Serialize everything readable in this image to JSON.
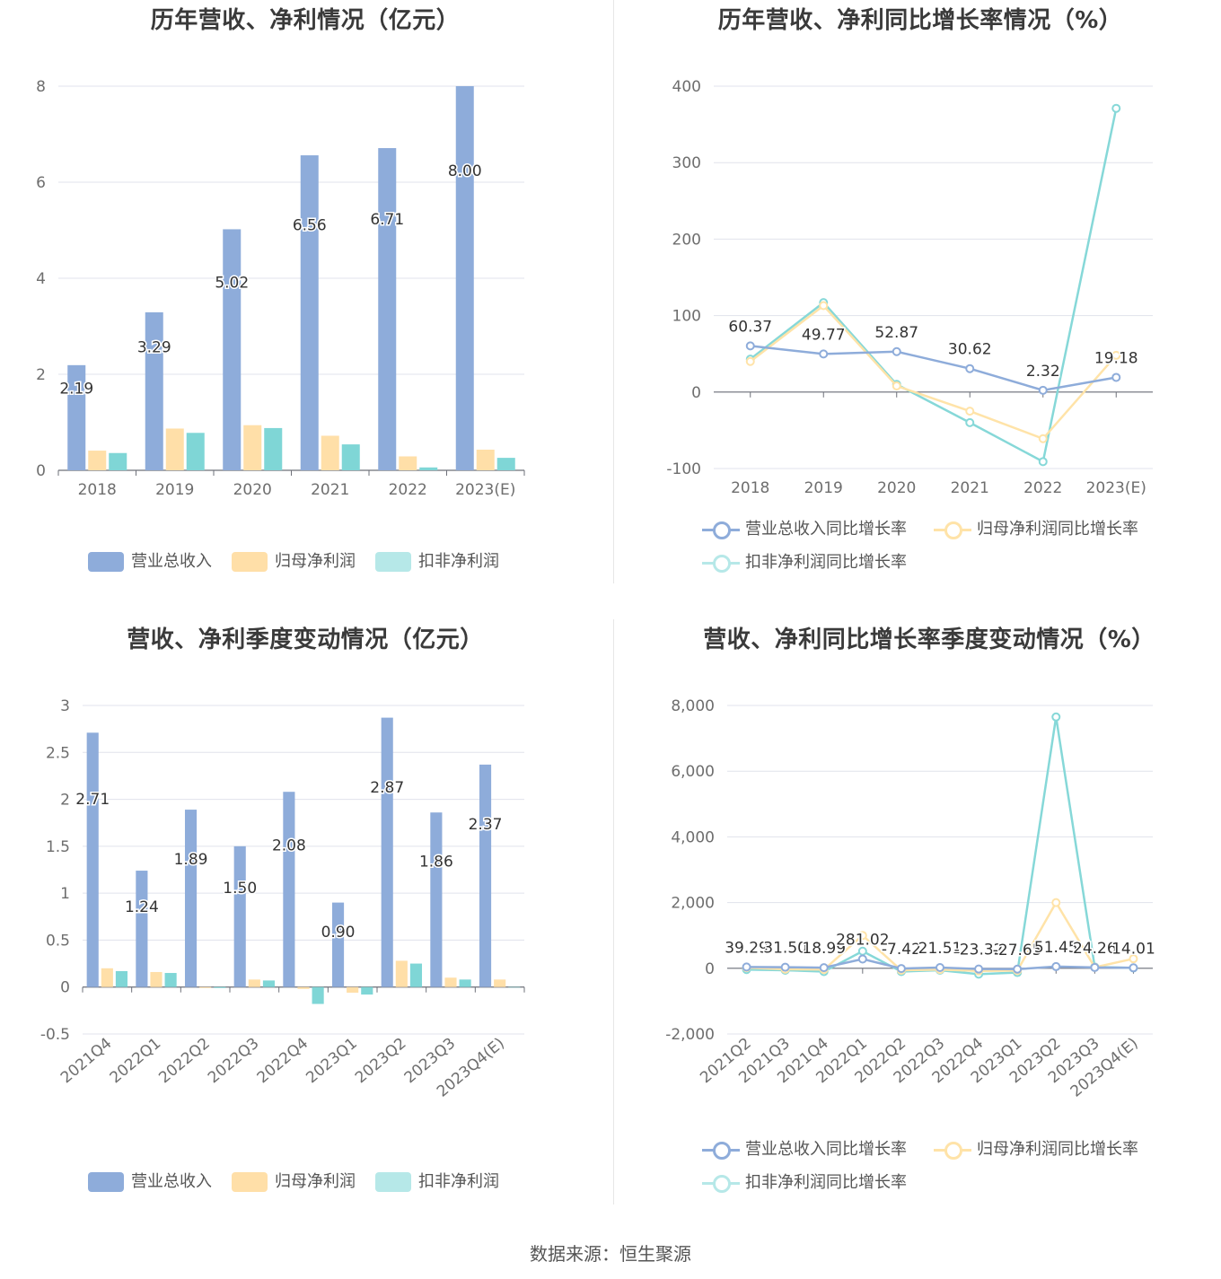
{
  "source": "数据来源：恒生聚源",
  "colors": {
    "revenue": "#8eacda",
    "net_profit": "#ffdfa8",
    "deducted_profit": "#7fd6d6",
    "revenue_growth": "#8eacda",
    "net_profit_growth": "#ffe3a8",
    "deducted_profit_growth": "#86d8d8"
  },
  "panels": [
    {
      "title": "历年营收、净利情况（亿元）",
      "legend": [
        "营业总收入",
        "归母净利润",
        "扣非净利润"
      ]
    },
    {
      "title": "历年营收、净利同比增长率情况（%）",
      "legend": [
        "营业总收入同比增长率",
        "归母净利润同比增长率",
        "扣非净利润同比增长率"
      ]
    },
    {
      "title": "营收、净利季度变动情况（亿元）",
      "legend": [
        "营业总收入",
        "归母净利润",
        "扣非净利润"
      ]
    },
    {
      "title": "营收、净利同比增长率季度变动情况（%）",
      "legend": [
        "营业总收入同比增长率",
        "归母净利润同比增长率",
        "扣非净利润同比增长率"
      ]
    }
  ],
  "chart_data": [
    {
      "type": "bar",
      "title": "历年营收、净利情况（亿元）",
      "categories": [
        "2018",
        "2019",
        "2020",
        "2021",
        "2022",
        "2023(E)"
      ],
      "ylim": [
        0,
        8
      ],
      "yticks": [
        "0",
        "2",
        "4",
        "6",
        "8"
      ],
      "series": [
        {
          "name": "营业总收入",
          "values": [
            2.19,
            3.29,
            5.02,
            6.56,
            6.71,
            8.0
          ],
          "labels": [
            "2.19",
            "3.29",
            "5.02",
            "6.56",
            "6.71",
            "8.00"
          ]
        },
        {
          "name": "归母净利润",
          "values": [
            0.41,
            0.87,
            0.94,
            0.72,
            0.29,
            0.43
          ]
        },
        {
          "name": "扣非净利润",
          "values": [
            0.36,
            0.78,
            0.88,
            0.54,
            0.06,
            0.26
          ]
        }
      ],
      "legend_position": "bottom",
      "grid": true
    },
    {
      "type": "line",
      "title": "历年营收、净利同比增长率情况（%）",
      "categories": [
        "2018",
        "2019",
        "2020",
        "2021",
        "2022",
        "2023(E)"
      ],
      "ylim": [
        -100,
        400
      ],
      "yticks": [
        "-100",
        "0",
        "100",
        "200",
        "300",
        "400"
      ],
      "series": [
        {
          "name": "营业总收入同比增长率",
          "values": [
            60.37,
            49.77,
            52.87,
            30.62,
            2.32,
            19.18
          ],
          "labels": [
            "60.37",
            "49.77",
            "52.87",
            "30.62",
            "2.32",
            "19.18"
          ]
        },
        {
          "name": "归母净利润同比增长率",
          "values": [
            40,
            113,
            8,
            -25,
            -61,
            48
          ]
        },
        {
          "name": "扣非净利润同比增长率",
          "values": [
            43,
            117,
            10,
            -40,
            -91,
            371
          ]
        }
      ],
      "legend_position": "bottom",
      "grid": true
    },
    {
      "type": "bar",
      "title": "营收、净利季度变动情况（亿元）",
      "categories": [
        "2021Q4",
        "2022Q1",
        "2022Q2",
        "2022Q3",
        "2022Q4",
        "2023Q1",
        "2023Q2",
        "2023Q3",
        "2023Q4(E)"
      ],
      "ylim": [
        -0.5,
        3
      ],
      "yticks": [
        "-0.5",
        "0",
        "0.5",
        "1",
        "1.5",
        "2",
        "2.5",
        "3"
      ],
      "series": [
        {
          "name": "营业总收入",
          "values": [
            2.71,
            1.24,
            1.89,
            1.5,
            2.08,
            0.9,
            2.87,
            1.86,
            2.37
          ],
          "labels": [
            "2.71",
            "1.24",
            "1.89",
            "1.50",
            "2.08",
            "0.90",
            "2.87",
            "1.86",
            "2.37"
          ]
        },
        {
          "name": "归母净利润",
          "values": [
            0.2,
            0.16,
            -0.01,
            0.08,
            -0.02,
            -0.06,
            0.28,
            0.1,
            0.08
          ]
        },
        {
          "name": "扣非净利润",
          "values": [
            0.17,
            0.15,
            -0.01,
            0.07,
            -0.18,
            -0.08,
            0.25,
            0.08,
            0
          ]
        }
      ],
      "legend_position": "bottom",
      "grid": true
    },
    {
      "type": "line",
      "title": "营收、净利同比增长率季度变动情况（%）",
      "categories": [
        "2021Q2",
        "2021Q3",
        "2021Q4",
        "2022Q1",
        "2022Q2",
        "2022Q3",
        "2022Q4",
        "2023Q1",
        "2023Q2",
        "2023Q3",
        "2023Q4(E)"
      ],
      "ylim": [
        -2000,
        8000
      ],
      "yticks": [
        "-2,000",
        "0",
        "2,000",
        "4,000",
        "6,000",
        "8,000"
      ],
      "series": [
        {
          "name": "营业总收入同比增长率",
          "values": [
            39.29,
            31.5,
            18.99,
            281.02,
            -7.42,
            21.51,
            -23.32,
            -27.65,
            51.45,
            24.26,
            14.01
          ],
          "labels": [
            "39.29",
            "31.50",
            "18.99",
            "281.02",
            "-7.42",
            "21.51",
            "-23.32",
            "-27.65",
            "51.45",
            "24.26",
            "14.01"
          ]
        },
        {
          "name": "归母净利润同比增长率",
          "values": [
            20,
            -30,
            -40,
            1000,
            -60,
            -40,
            -80,
            -70,
            2000,
            30,
            290
          ]
        },
        {
          "name": "扣非净利润同比增长率",
          "values": [
            -40,
            -60,
            -100,
            520,
            -100,
            -60,
            -180,
            -130,
            7650,
            40,
            10
          ]
        }
      ],
      "legend_position": "bottom",
      "grid": true
    }
  ]
}
